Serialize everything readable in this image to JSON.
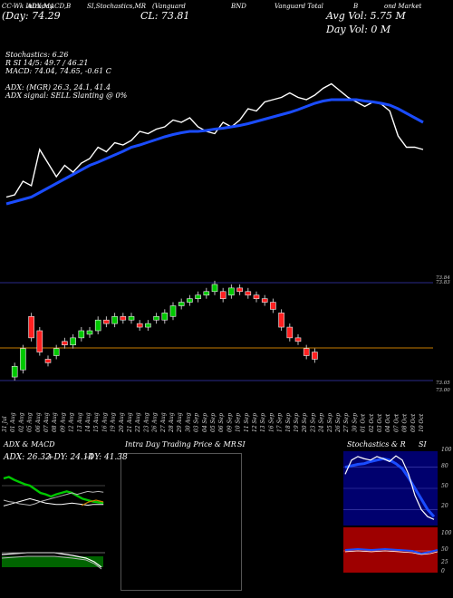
{
  "header": {
    "l1": [
      {
        "t": "CC-Wk Intraday",
        "cls": "t7"
      },
      {
        "t": "ADX,MACD,B",
        "cls": "t7"
      },
      {
        "t": "SI,Stochastics,MR",
        "cls": "t7"
      },
      {
        "t": "(Vanguard",
        "cls": "t7"
      },
      {
        "t": "BND",
        "cls": "t7"
      },
      {
        "t": "Vanguard Total",
        "cls": "t7"
      },
      {
        "t": "B",
        "cls": "t7"
      },
      {
        "t": "ond Market",
        "cls": "t7"
      }
    ],
    "l2": [
      {
        "t": "(Day: 74.29",
        "cls": "t11"
      },
      {
        "t": "CL: 73.81",
        "cls": "t11"
      },
      {
        "t": "Avg Vol: 5.75 M",
        "cls": "t11"
      }
    ],
    "dayvol": "Day Vol: 0  M",
    "ind": [
      "Stochastics: 6.26",
      "R                  SI 14/5: 49.7 / 46.21",
      "MACD: 74.04,  74.65, -0.61 C",
      "",
      "ADX:                    (MGR) 26.3,  24.1,  41.4",
      "ADX  signal: SELL  Slanting @ 0%"
    ]
  },
  "price_levels": [
    "73.84",
    "73.83",
    "73.05",
    "73.00"
  ],
  "dates": [
    "31 Jul",
    "01 Aug",
    "02 Aug",
    "05 Aug",
    "06 Aug",
    "07 Aug",
    "08 Aug",
    "09 Aug",
    "12 Aug",
    "13 Aug",
    "14 Aug",
    "15 Aug",
    "16 Aug",
    "19 Aug",
    "20 Aug",
    "21 Aug",
    "22 Aug",
    "23 Aug",
    "26 Aug",
    "27 Aug",
    "28 Aug",
    "29 Aug",
    "30 Aug",
    "03 Sep",
    "04 Sep",
    "05 Sep",
    "06 Sep",
    "09 Sep",
    "10 Sep",
    "11 Sep",
    "12 Sep",
    "13 Sep",
    "16 Sep",
    "17 Sep",
    "18 Sep",
    "19 Sep",
    "20 Sep",
    "23 Sep",
    "24 Sep",
    "25 Sep",
    "26 Sep",
    "27 Sep",
    "30 Sep",
    "01 Oct",
    "02 Oct",
    "03 Oct",
    "04 Oct",
    "07 Oct",
    "08 Oct",
    "09 Oct",
    "10 Oct"
  ],
  "panels": {
    "adx": {
      "title": "ADX  & MACD",
      "adx": "ADX: 26.32",
      "pdi": "+DY: 24.14",
      "mdi": "-DY: 41.38"
    },
    "intra": {
      "title": "Intra  Day Trading Price  & MR",
      "si": "SI"
    },
    "stoch": {
      "title": "Stochastics & R",
      "si": "SI",
      "ticks": [
        "100",
        "80",
        "50",
        "20"
      ],
      "rticks": [
        "100",
        "50",
        "25",
        "0"
      ]
    }
  },
  "colors": {
    "blue": "#1a4cff",
    "green": "#00c800",
    "red": "#ff2020",
    "orange": "#c87d00",
    "navy": "#00006e",
    "darkred": "#9e0000"
  },
  "chart_data": [
    {
      "type": "candlestick",
      "note_series": "close line (white) and moving average (blue), upper pane",
      "close": [
        72.85,
        72.9,
        73.2,
        73.1,
        73.9,
        73.6,
        73.3,
        73.55,
        73.4,
        73.6,
        73.7,
        73.95,
        73.85,
        74.05,
        74.0,
        74.1,
        74.3,
        74.25,
        74.35,
        74.4,
        74.55,
        74.5,
        74.6,
        74.4,
        74.3,
        74.25,
        74.5,
        74.4,
        74.55,
        74.8,
        74.75,
        74.95,
        75.0,
        75.05,
        75.15,
        75.05,
        75.0,
        75.1,
        75.25,
        75.35,
        75.2,
        75.05,
        74.95,
        74.85,
        74.95,
        74.9,
        74.75,
        74.2,
        73.95,
        73.95,
        73.9
      ],
      "ma": [
        72.7,
        72.75,
        72.8,
        72.85,
        72.95,
        73.05,
        73.15,
        73.25,
        73.35,
        73.45,
        73.55,
        73.62,
        73.7,
        73.78,
        73.86,
        73.95,
        74.0,
        74.06,
        74.12,
        74.18,
        74.23,
        74.27,
        74.3,
        74.3,
        74.32,
        74.35,
        74.37,
        74.4,
        74.43,
        74.47,
        74.52,
        74.57,
        74.62,
        74.67,
        74.72,
        74.78,
        74.85,
        74.92,
        74.97,
        75.0,
        75.0,
        75.0,
        75.0,
        74.97,
        74.95,
        74.92,
        74.88,
        74.8,
        74.7,
        74.6,
        74.5
      ],
      "candles": [
        {
          "o": 72.75,
          "c": 72.9
        },
        {
          "o": 72.85,
          "c": 73.15
        },
        {
          "o": 73.6,
          "c": 73.3
        },
        {
          "o": 73.4,
          "c": 73.1
        },
        {
          "o": 73.0,
          "c": 72.95
        },
        {
          "o": 73.05,
          "c": 73.15
        },
        {
          "o": 73.25,
          "c": 73.2
        },
        {
          "o": 73.2,
          "c": 73.3
        },
        {
          "o": 73.3,
          "c": 73.4
        },
        {
          "o": 73.35,
          "c": 73.4
        },
        {
          "o": 73.4,
          "c": 73.55
        },
        {
          "o": 73.55,
          "c": 73.5
        },
        {
          "o": 73.5,
          "c": 73.6
        },
        {
          "o": 73.6,
          "c": 73.55
        },
        {
          "o": 73.55,
          "c": 73.6
        },
        {
          "o": 73.5,
          "c": 73.45
        },
        {
          "o": 73.45,
          "c": 73.5
        },
        {
          "o": 73.55,
          "c": 73.6
        },
        {
          "o": 73.55,
          "c": 73.65
        },
        {
          "o": 73.6,
          "c": 73.75
        },
        {
          "o": 73.75,
          "c": 73.8
        },
        {
          "o": 73.8,
          "c": 73.85
        },
        {
          "o": 73.85,
          "c": 73.9
        },
        {
          "o": 73.9,
          "c": 73.95
        },
        {
          "o": 73.95,
          "c": 74.05
        },
        {
          "o": 73.95,
          "c": 73.85
        },
        {
          "o": 73.9,
          "c": 74.0
        },
        {
          "o": 74.0,
          "c": 73.95
        },
        {
          "o": 73.95,
          "c": 73.9
        },
        {
          "o": 73.9,
          "c": 73.85
        },
        {
          "o": 73.85,
          "c": 73.8
        },
        {
          "o": 73.8,
          "c": 73.7
        },
        {
          "o": 73.65,
          "c": 73.45
        },
        {
          "o": 73.45,
          "c": 73.3
        },
        {
          "o": 73.3,
          "c": 73.25
        },
        {
          "o": 73.15,
          "c": 73.05
        },
        {
          "o": 73.1,
          "c": 73.0
        }
      ],
      "ylim": [
        72.6,
        75.4
      ]
    },
    {
      "type": "line",
      "title": "ADX  & MACD",
      "series": [
        {
          "name": "ADX",
          "values": [
            60,
            62,
            58,
            55,
            52,
            50,
            45,
            40,
            38,
            35,
            38,
            40,
            42,
            40,
            36,
            32,
            30,
            28,
            27,
            26
          ]
        },
        {
          "name": "+DY",
          "values": [
            22,
            24,
            26,
            28,
            30,
            32,
            30,
            28,
            26,
            25,
            24,
            24,
            25,
            26,
            25,
            24,
            23,
            24,
            24,
            24
          ]
        },
        {
          "name": "-DY",
          "values": [
            30,
            28,
            27,
            25,
            24,
            23,
            25,
            28,
            30,
            32,
            34,
            36,
            38,
            40,
            38,
            40,
            42,
            41,
            42,
            41
          ]
        }
      ],
      "ylim": [
        0,
        100
      ]
    },
    {
      "type": "line",
      "title": "Stochastics & R",
      "series": [
        {
          "name": "Stochastics",
          "values": [
            70,
            90,
            95,
            92,
            90,
            95,
            92,
            88,
            96,
            90,
            70,
            40,
            20,
            10,
            6
          ]
        },
        {
          "name": "R",
          "values": [
            80,
            82,
            84,
            85,
            88,
            90,
            92,
            90,
            85,
            78,
            65,
            50,
            35,
            20,
            10
          ]
        }
      ],
      "ylim": [
        0,
        100
      ]
    }
  ]
}
